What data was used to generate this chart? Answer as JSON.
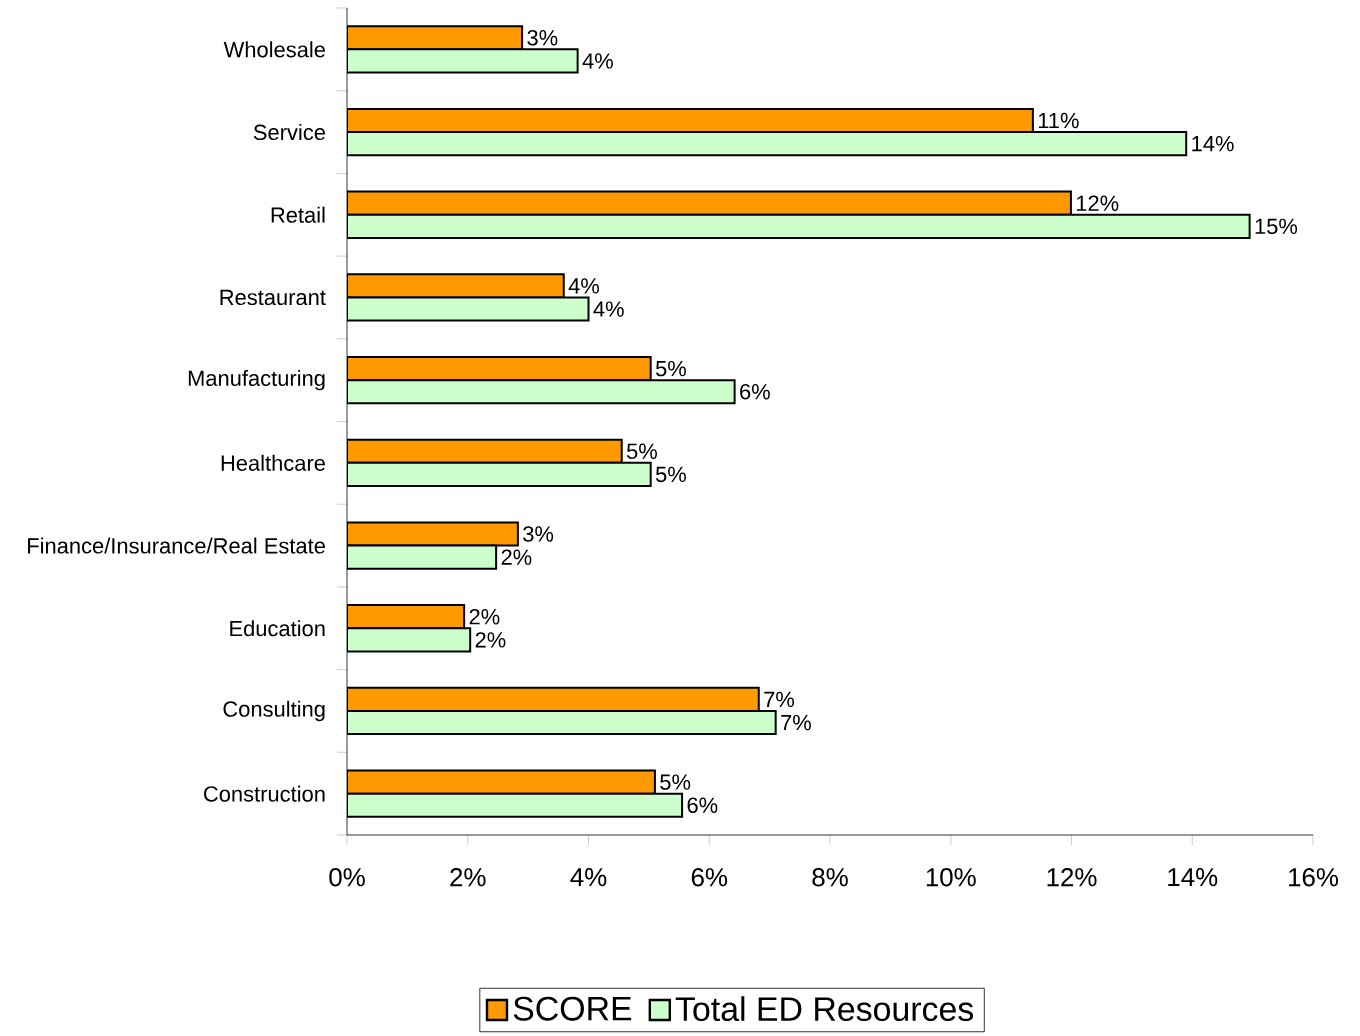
{
  "chart_data": {
    "type": "bar",
    "orientation": "horizontal",
    "categories": [
      "Wholesale",
      "Service",
      "Retail",
      "Restaurant",
      "Manufacturing",
      "Healthcare",
      "Finance/Insurance/Real Estate",
      "Education",
      "Consulting",
      "Construction"
    ],
    "series": [
      {
        "name": "SCORE",
        "color": "#ff9900",
        "values": [
          2.9,
          11.36,
          11.99,
          3.59,
          5.03,
          4.55,
          2.83,
          1.94,
          6.82,
          5.1
        ],
        "value_labels": [
          "3%",
          "11%",
          "12%",
          "4%",
          "5%",
          "5%",
          "3%",
          "2%",
          "7%",
          "5%"
        ]
      },
      {
        "name": "Total ED Resources",
        "color": "#ccffcc",
        "values": [
          3.82,
          13.9,
          14.95,
          4.0,
          6.42,
          5.03,
          2.47,
          2.04,
          7.1,
          5.55
        ],
        "value_labels": [
          "4%",
          "14%",
          "15%",
          "4%",
          "6%",
          "5%",
          "2%",
          "2%",
          "7%",
          "6%"
        ]
      }
    ],
    "xlim": [
      0,
      16
    ],
    "xticks": [
      {
        "value": 0,
        "label": "0%"
      },
      {
        "value": 2,
        "label": "2%"
      },
      {
        "value": 4,
        "label": "4%"
      },
      {
        "value": 6,
        "label": "6%"
      },
      {
        "value": 8,
        "label": "8%"
      },
      {
        "value": 10,
        "label": "10%"
      },
      {
        "value": 12,
        "label": "12%"
      },
      {
        "value": 14,
        "label": "14%"
      },
      {
        "value": 16,
        "label": "16%"
      }
    ],
    "legend": "bottom",
    "grid": false
  }
}
